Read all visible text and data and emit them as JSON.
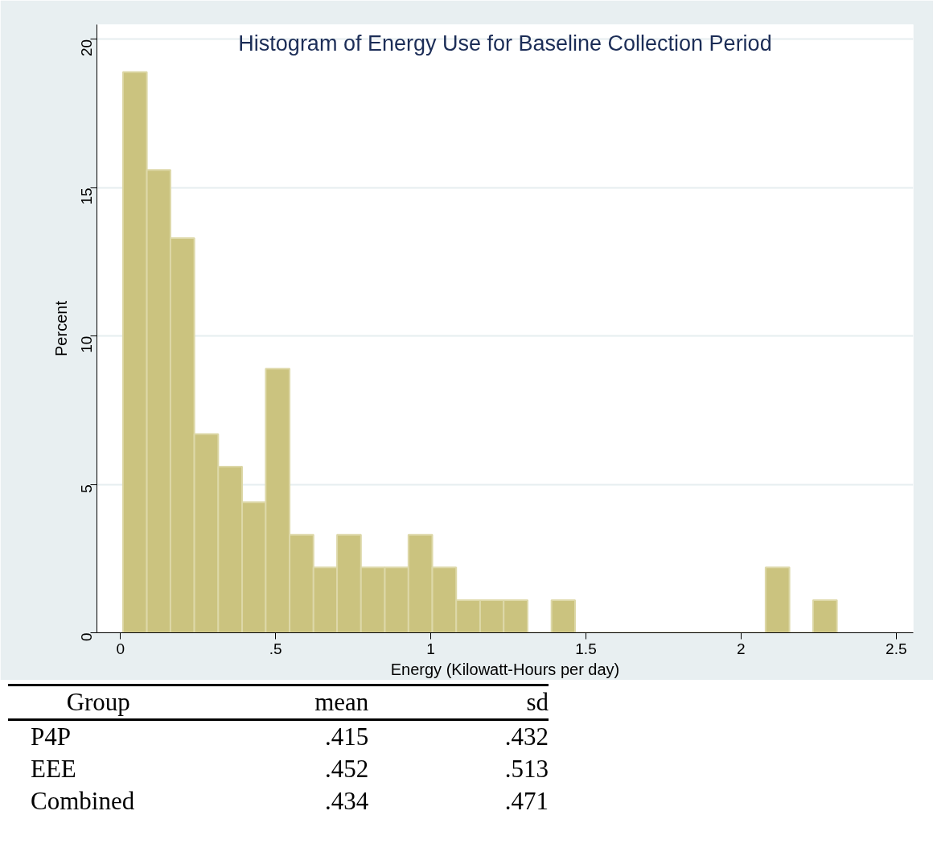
{
  "chart_data": {
    "type": "histogram",
    "title": "Histogram of Energy Use for Baseline Collection Period",
    "xlabel": "Energy (Kilowatt-Hours per day)",
    "ylabel": "Percent",
    "bins": [
      0.008,
      0.085,
      0.161,
      0.238,
      0.315,
      0.392,
      0.468,
      0.545,
      0.622,
      0.698,
      0.775,
      0.852,
      0.928,
      1.005,
      1.082,
      1.159,
      1.235,
      1.312,
      1.389,
      1.465,
      1.542,
      1.619,
      1.695,
      1.772,
      1.849,
      1.926,
      2.002,
      2.079,
      2.156,
      2.232,
      2.309
    ],
    "values": [
      18.9,
      15.6,
      13.3,
      6.7,
      5.6,
      4.4,
      8.9,
      3.3,
      2.2,
      3.3,
      2.2,
      2.2,
      3.3,
      2.2,
      1.1,
      1.1,
      1.1,
      0,
      1.1,
      0,
      0,
      0,
      0,
      0,
      0,
      0,
      0,
      2.2,
      0,
      1.1
    ],
    "color": "#cbc37f",
    "xlim": [
      -0.076,
      2.555
    ],
    "ylim": [
      0,
      20.5
    ],
    "xticks": [
      0,
      {
        "value": 0.5,
        "label": ".5"
      },
      1,
      1.5,
      2,
      2.5
    ],
    "yticks": [
      0,
      5,
      10,
      15,
      20
    ],
    "grid": "y",
    "annotations": [
      "Group",
      "mean",
      "sd",
      "P4P",
      ".415",
      ".432",
      "EEE",
      ".452",
      ".513",
      "Combined",
      ".434",
      ".471"
    ]
  }
}
